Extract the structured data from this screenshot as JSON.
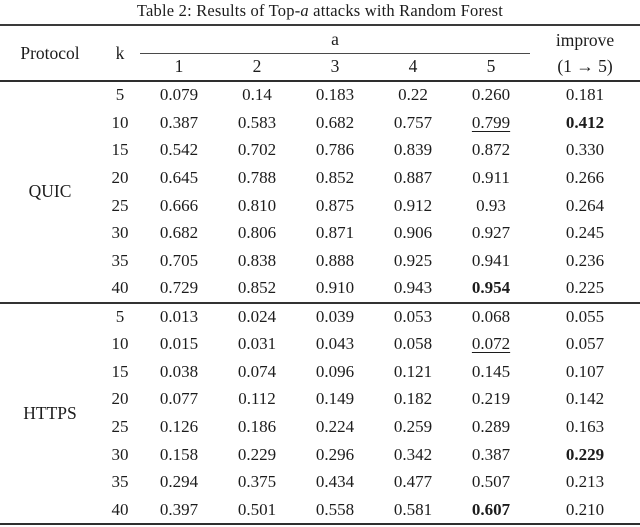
{
  "caption": {
    "prefix": "Table 2: Results of Top-",
    "italic": "a",
    "suffix": " attacks with Random Forest"
  },
  "table": {
    "headers": {
      "protocol": "Protocol",
      "k": "k",
      "a_group": "a",
      "a_cols": [
        "1",
        "2",
        "3",
        "4",
        "5"
      ],
      "improve_line1": "improve",
      "improve_line2": "(1 → 5)"
    },
    "sections": [
      {
        "protocol": "QUIC",
        "rows": [
          {
            "k": "5",
            "values": [
              "0.079",
              "0.14",
              "0.183",
              "0.22",
              "0.260"
            ],
            "improve": "0.181",
            "value_styles": [
              "",
              "",
              "",
              "",
              ""
            ],
            "improve_style": ""
          },
          {
            "k": "10",
            "values": [
              "0.387",
              "0.583",
              "0.682",
              "0.757",
              "0.799"
            ],
            "improve": "0.412",
            "value_styles": [
              "",
              "",
              "",
              "",
              "underline"
            ],
            "improve_style": "bold"
          },
          {
            "k": "15",
            "values": [
              "0.542",
              "0.702",
              "0.786",
              "0.839",
              "0.872"
            ],
            "improve": "0.330",
            "value_styles": [
              "",
              "",
              "",
              "",
              ""
            ],
            "improve_style": ""
          },
          {
            "k": "20",
            "values": [
              "0.645",
              "0.788",
              "0.852",
              "0.887",
              "0.911"
            ],
            "improve": "0.266",
            "value_styles": [
              "",
              "",
              "",
              "",
              ""
            ],
            "improve_style": ""
          },
          {
            "k": "25",
            "values": [
              "0.666",
              "0.810",
              "0.875",
              "0.912",
              "0.93"
            ],
            "improve": "0.264",
            "value_styles": [
              "",
              "",
              "",
              "",
              ""
            ],
            "improve_style": ""
          },
          {
            "k": "30",
            "values": [
              "0.682",
              "0.806",
              "0.871",
              "0.906",
              "0.927"
            ],
            "improve": "0.245",
            "value_styles": [
              "",
              "",
              "",
              "",
              ""
            ],
            "improve_style": ""
          },
          {
            "k": "35",
            "values": [
              "0.705",
              "0.838",
              "0.888",
              "0.925",
              "0.941"
            ],
            "improve": "0.236",
            "value_styles": [
              "",
              "",
              "",
              "",
              ""
            ],
            "improve_style": ""
          },
          {
            "k": "40",
            "values": [
              "0.729",
              "0.852",
              "0.910",
              "0.943",
              "0.954"
            ],
            "improve": "0.225",
            "value_styles": [
              "",
              "",
              "",
              "",
              "bold"
            ],
            "improve_style": ""
          }
        ]
      },
      {
        "protocol": "HTTPS",
        "rows": [
          {
            "k": "5",
            "values": [
              "0.013",
              "0.024",
              "0.039",
              "0.053",
              "0.068"
            ],
            "improve": "0.055",
            "value_styles": [
              "",
              "",
              "",
              "",
              ""
            ],
            "improve_style": ""
          },
          {
            "k": "10",
            "values": [
              "0.015",
              "0.031",
              "0.043",
              "0.058",
              "0.072"
            ],
            "improve": "0.057",
            "value_styles": [
              "",
              "",
              "",
              "",
              "underline"
            ],
            "improve_style": ""
          },
          {
            "k": "15",
            "values": [
              "0.038",
              "0.074",
              "0.096",
              "0.121",
              "0.145"
            ],
            "improve": "0.107",
            "value_styles": [
              "",
              "",
              "",
              "",
              ""
            ],
            "improve_style": ""
          },
          {
            "k": "20",
            "values": [
              "0.077",
              "0.112",
              "0.149",
              "0.182",
              "0.219"
            ],
            "improve": "0.142",
            "value_styles": [
              "",
              "",
              "",
              "",
              ""
            ],
            "improve_style": ""
          },
          {
            "k": "25",
            "values": [
              "0.126",
              "0.186",
              "0.224",
              "0.259",
              "0.289"
            ],
            "improve": "0.163",
            "value_styles": [
              "",
              "",
              "",
              "",
              ""
            ],
            "improve_style": ""
          },
          {
            "k": "30",
            "values": [
              "0.158",
              "0.229",
              "0.296",
              "0.342",
              "0.387"
            ],
            "improve": "0.229",
            "value_styles": [
              "",
              "",
              "",
              "",
              ""
            ],
            "improve_style": "bold"
          },
          {
            "k": "35",
            "values": [
              "0.294",
              "0.375",
              "0.434",
              "0.477",
              "0.507"
            ],
            "improve": "0.213",
            "value_styles": [
              "",
              "",
              "",
              "",
              ""
            ],
            "improve_style": ""
          },
          {
            "k": "40",
            "values": [
              "0.397",
              "0.501",
              "0.558",
              "0.581",
              "0.607"
            ],
            "improve": "0.210",
            "value_styles": [
              "",
              "",
              "",
              "",
              "bold"
            ],
            "improve_style": ""
          }
        ]
      }
    ]
  }
}
